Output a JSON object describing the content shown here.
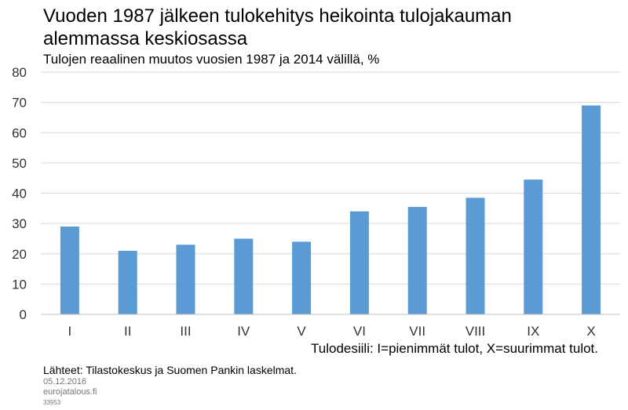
{
  "title": "Vuoden 1987 jälkeen tulokehitys heikointa tulojakauman alemmassa keskiosassa",
  "subtitle": "Tulojen  reaalinen muutos vuosien 1987 ja 2014 välillä, %",
  "source": "Lähteet:  Tilastokeskus  ja Suomen  Pankin laskelmat.",
  "date": "05.12.2016",
  "site": "eurojatalous.fi",
  "code": "33953",
  "chart_data": {
    "type": "bar",
    "categories": [
      "I",
      "II",
      "III",
      "IV",
      "V",
      "VI",
      "VII",
      "VIII",
      "IX",
      "X"
    ],
    "values": [
      29,
      21,
      23,
      25,
      24,
      34,
      35.5,
      38.5,
      44.5,
      69
    ],
    "title": "Vuoden 1987 jälkeen tulokehitys heikointa tulojakauman alemmassa keskiosassa",
    "subtitle": "Tulojen  reaalinen muutos vuosien 1987 ja 2014 välillä, %",
    "xlabel": "Tulodesiili: I=pienimmät  tulot, X=suurimmat tulot.",
    "ylabel": "",
    "ylim": [
      0,
      80
    ],
    "yticks": [
      0,
      10,
      20,
      30,
      40,
      50,
      60,
      70,
      80
    ],
    "grid": true,
    "bar_color": "#5b9bd5"
  }
}
